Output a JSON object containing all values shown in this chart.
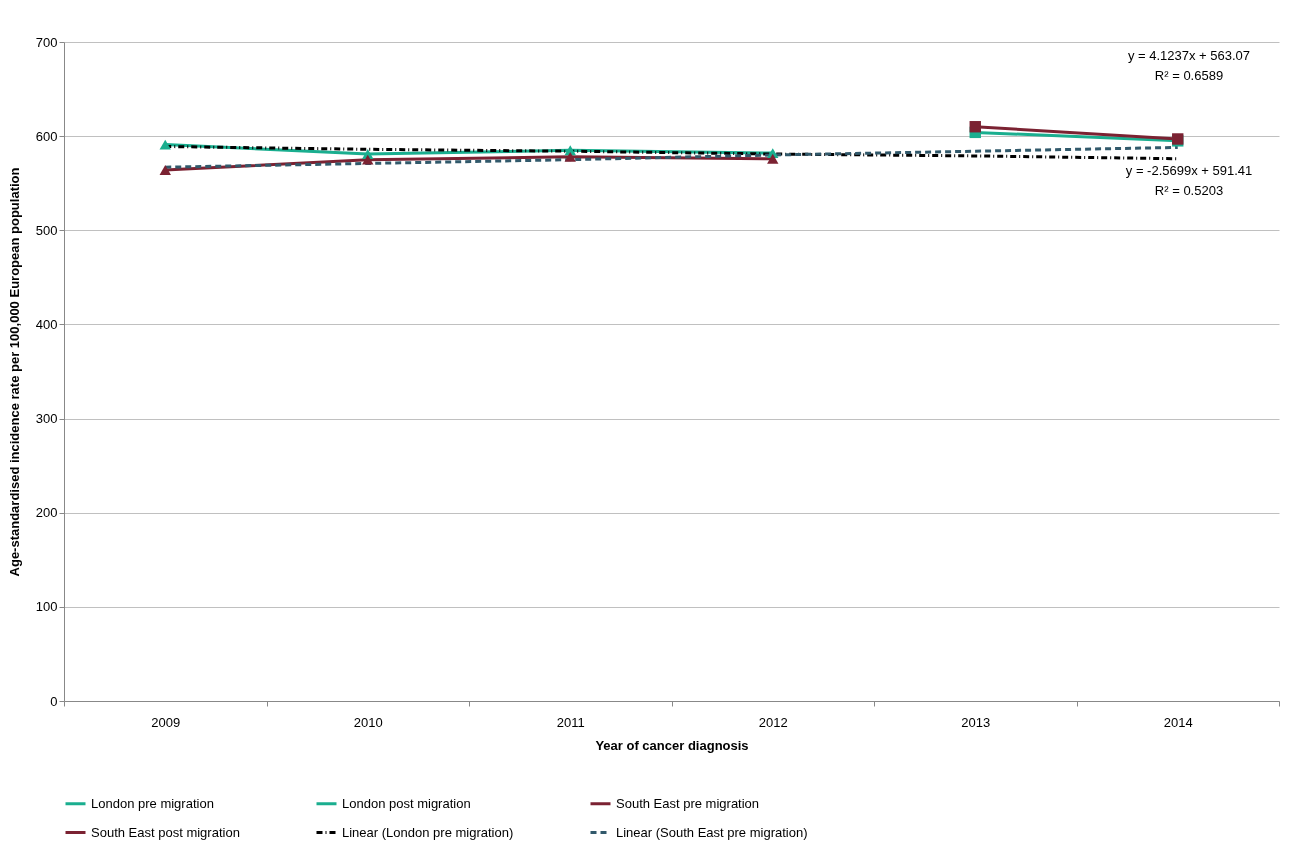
{
  "chart_data": {
    "type": "line",
    "xlabel": "Year of cancer diagnosis",
    "ylabel": "Age-standardised incidence rate per 100,000 European population",
    "categories": [
      "2009",
      "2010",
      "2011",
      "2012",
      "2013",
      "2014"
    ],
    "series": [
      {
        "name": "London pre migration",
        "color": "#1aae8f",
        "marker": "triangle",
        "values": [
          591,
          581,
          585,
          582,
          null,
          null
        ]
      },
      {
        "name": "London post migration",
        "color": "#1aae8f",
        "marker": "square",
        "values": [
          null,
          null,
          null,
          null,
          604,
          595
        ]
      },
      {
        "name": "South East pre migration",
        "color": "#7b2232",
        "marker": "triangle",
        "values": [
          564,
          575,
          578,
          576,
          null,
          null
        ]
      },
      {
        "name": "South East post migration",
        "color": "#7b2232",
        "marker": "square",
        "values": [
          null,
          null,
          null,
          null,
          610,
          597
        ]
      },
      {
        "name": "Linear (London pre migration)",
        "type": "line",
        "color": "#000000",
        "marker": "none",
        "line_style": "dotted",
        "values": [
          589,
          586,
          584,
          581,
          579,
          576
        ]
      },
      {
        "name": "Linear (South East pre migration)",
        "type": "line",
        "color": "#31596b",
        "marker": "none",
        "line_style": "dashed",
        "values": [
          567,
          571,
          575,
          580,
          584,
          588
        ]
      }
    ],
    "ylim": [
      0,
      700
    ],
    "yticks": [
      0,
      100,
      200,
      300,
      400,
      500,
      600,
      700
    ],
    "grid": "y",
    "legend": "bottom",
    "annotations": [
      "y = 4.1237x + 563.07\nR² = 0.6589",
      "y = -2.5699x + 591.41\nR² = 0.5203"
    ]
  }
}
